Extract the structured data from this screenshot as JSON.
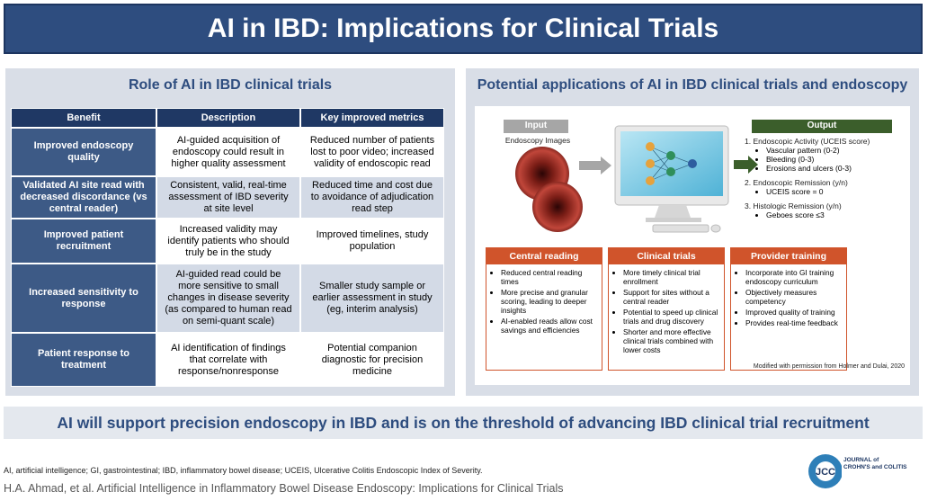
{
  "header": {
    "title": "AI in IBD: Implications for Clinical Trials"
  },
  "left_panel": {
    "heading": "Role of AI in IBD clinical trials",
    "table": {
      "columns": [
        "Benefit",
        "Description",
        "Key improved metrics"
      ],
      "rows": [
        [
          "Improved endoscopy quality",
          "AI-guided acquisition of endoscopy could result in higher quality assessment",
          "Reduced number of patients lost to poor video; increased validity of endoscopic read"
        ],
        [
          "Validated AI site read with decreased discordance (vs central reader)",
          "Consistent, valid, real-time assessment of IBD severity at site level",
          "Reduced time and cost due to avoidance of adjudication read step"
        ],
        [
          "Improved patient recruitment",
          "Increased validity may identify patients who should truly be in the study",
          "Improved timelines, study population"
        ],
        [
          "Increased sensitivity to response",
          "AI-guided read could be more sensitive to small changes in disease severity (as compared to human read on semi-quant scale)",
          "Smaller study sample or earlier assessment in study (eg, interim analysis)"
        ],
        [
          "Patient response to treatment",
          "AI identification of findings that correlate with response/nonresponse",
          "Potential companion diagnostic for precision medicine"
        ]
      ]
    }
  },
  "right_panel": {
    "heading": "Potential applications of AI in IBD clinical trials and endoscopy",
    "input": {
      "label": "Input",
      "caption": "Endoscopy Images"
    },
    "output": {
      "label": "Output",
      "items": [
        {
          "text": "1. Endoscopic Activity (UCEIS score)",
          "subitems": [
            "Vascular pattern (0-2)",
            "Bleeding (0-3)",
            "Erosions and ulcers (0-3)"
          ]
        },
        {
          "text": "2. Endoscopic Remission (y/n)",
          "subitems": [
            "UCEIS score = 0"
          ]
        },
        {
          "text": "3. Histologic Remission (y/n)",
          "subitems": [
            "Geboes score ≤3"
          ]
        }
      ]
    },
    "boxes": [
      {
        "title": "Central reading",
        "bullets": [
          "Reduced central reading times",
          "More precise and granular scoring, leading to deeper insights",
          "AI-enabled reads allow cost savings and efficiencies"
        ]
      },
      {
        "title": "Clinical trials",
        "bullets": [
          "More timely clinical trial enrollment",
          "Support for sites without a central reader",
          "Potential to speed up clinical trials and drug discovery",
          "Shorter and more effective clinical trials combined with lower costs"
        ]
      },
      {
        "title": "Provider training",
        "bullets": [
          "Incorporate into GI training endoscopy curriculum",
          "Objectively measures competency",
          "Improved quality of training",
          "Provides real-time feedback"
        ]
      }
    ],
    "credit": "Modified with permission from Holmer and Dulai, 2020"
  },
  "banner": "AI will support precision endoscopy in IBD and is on the threshold of advancing IBD clinical trial recruitment",
  "footer": {
    "abbreviations": "AI, artificial intelligence; GI, gastrointestinal; IBD, inflammatory bowel disease; UCEIS, Ulcerative Colitis Endoscopic Index of Severity.",
    "citation": "H.A. Ahmad, et al. Artificial Intelligence in Inflammatory Bowel Disease Endoscopy: Implications for Clinical Trials",
    "logo": {
      "mark": "JCC",
      "lines": [
        "JOURNAL of",
        "CROHN'S and COLITIS"
      ]
    }
  }
}
